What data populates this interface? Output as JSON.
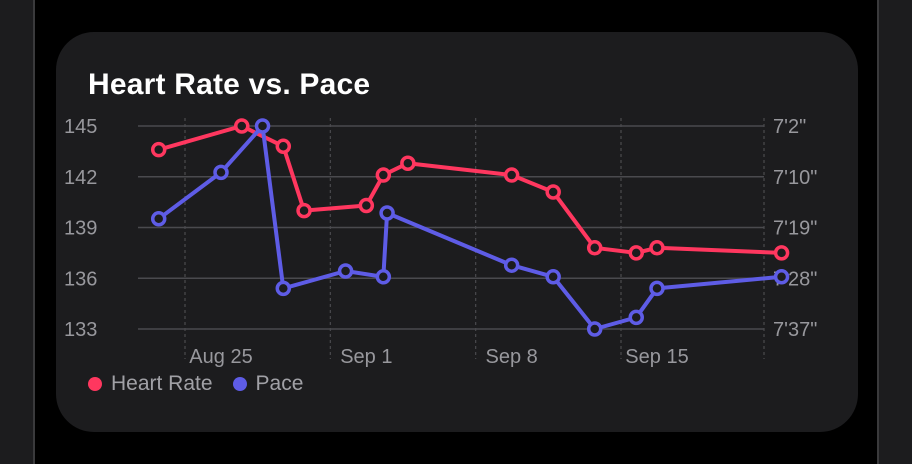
{
  "chart_data": {
    "type": "line",
    "title": "Heart Rate vs. Pace",
    "x_ticks": [
      "Aug 25",
      "Sep 1",
      "Sep 8",
      "Sep 15"
    ],
    "y_left_ticks": [
      "145",
      "142",
      "139",
      "136",
      "133"
    ],
    "y_right_ticks": [
      "7'2\"",
      "7'10\"",
      "7'19\"",
      "7'28\"",
      "7'37\""
    ],
    "ylim_left": [
      133,
      145
    ],
    "ylim_right_pace_seconds": [
      422,
      457
    ],
    "grid": true,
    "legend_position": "bottom-left",
    "series": [
      {
        "name": "Heart Rate",
        "color": "#ff375f",
        "axis": "left",
        "points": [
          {
            "x": "Aug 22",
            "y": 143.6
          },
          {
            "x": "Aug 26",
            "y": 145.0
          },
          {
            "x": "Aug 28",
            "y": 143.8
          },
          {
            "x": "Aug 29",
            "y": 140.0
          },
          {
            "x": "Sep 1",
            "y": 140.3
          },
          {
            "x": "Sep 1",
            "y": 142.1
          },
          {
            "x": "Sep 3",
            "y": 142.8
          },
          {
            "x": "Sep 8",
            "y": 142.1
          },
          {
            "x": "Sep 10",
            "y": 141.1
          },
          {
            "x": "Sep 12",
            "y": 137.8
          },
          {
            "x": "Sep 14",
            "y": 137.5
          },
          {
            "x": "Sep 15",
            "y": 137.8
          },
          {
            "x": "Sep 21",
            "y": 137.5
          }
        ]
      },
      {
        "name": "Pace",
        "color": "#5e5ce6",
        "axis": "right",
        "points": [
          {
            "x": "Aug 22",
            "y": "7'18\""
          },
          {
            "x": "Aug 25",
            "y": "7'10\""
          },
          {
            "x": "Aug 27",
            "y": "7'2\""
          },
          {
            "x": "Aug 28",
            "y": "7'30\""
          },
          {
            "x": "Aug 31",
            "y": "7'27\""
          },
          {
            "x": "Sep 1",
            "y": "7'28\""
          },
          {
            "x": "Sep 2",
            "y": "7'17\""
          },
          {
            "x": "Sep 8",
            "y": "7'26\""
          },
          {
            "x": "Sep 10",
            "y": "7'28\""
          },
          {
            "x": "Sep 12",
            "y": "7'37\""
          },
          {
            "x": "Sep 14",
            "y": "7'35\""
          },
          {
            "x": "Sep 15",
            "y": "7'30\""
          },
          {
            "x": "Sep 21",
            "y": "7'28\""
          }
        ]
      }
    ]
  }
}
